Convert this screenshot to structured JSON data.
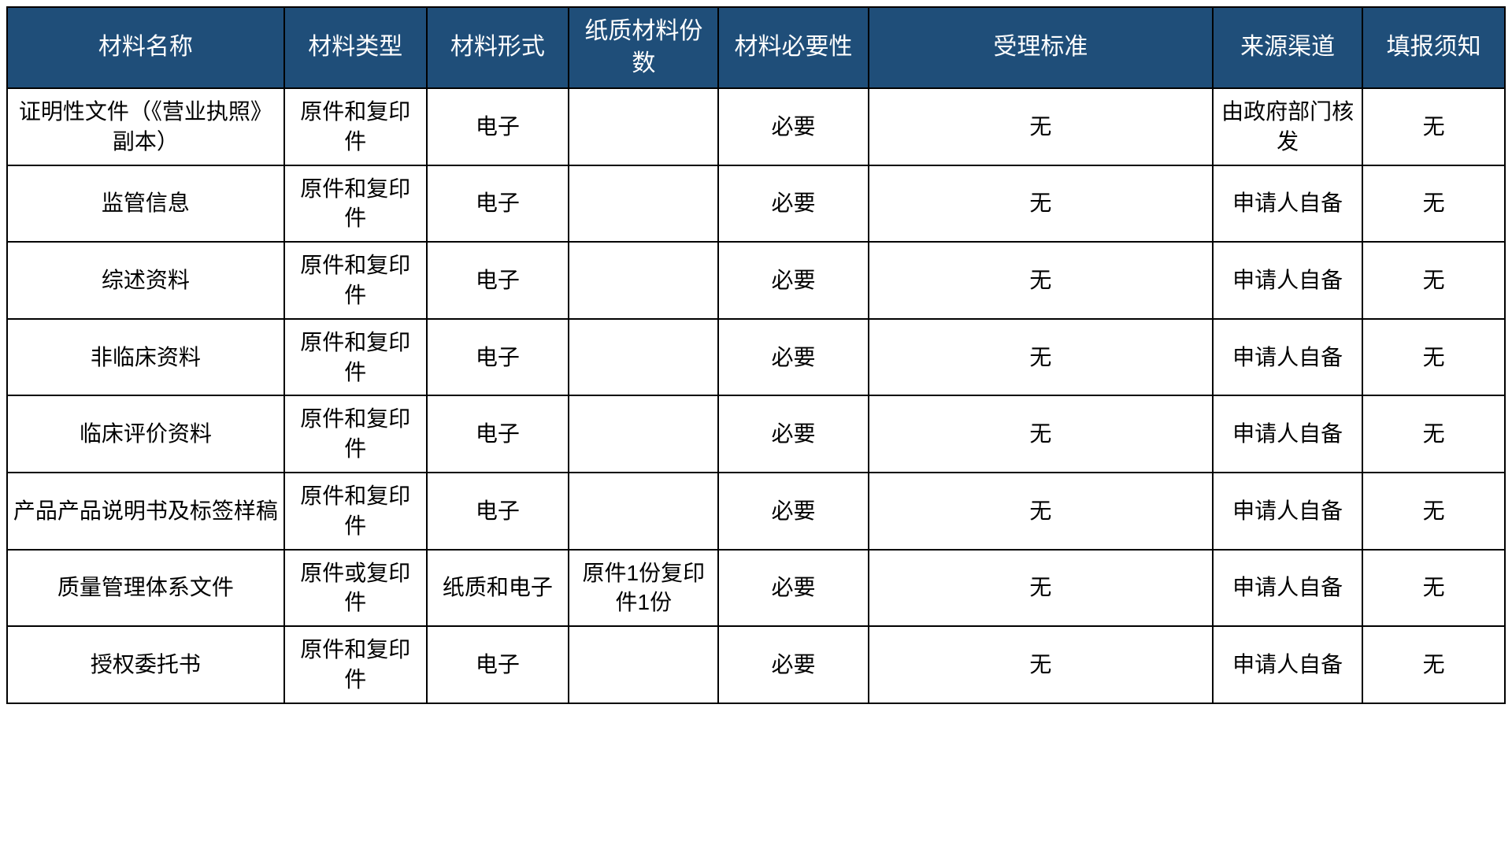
{
  "table": {
    "header_bg": "#1f4e79",
    "header_color": "#ffffff",
    "cell_bg": "#ffffff",
    "cell_color": "#000000",
    "border_color": "#000000",
    "border_width": 2,
    "header_fontsize": 30,
    "cell_fontsize": 28,
    "col_widths_pct": [
      18.5,
      9.5,
      9.5,
      10,
      10,
      23,
      10,
      9.5
    ],
    "columns": [
      "材料名称",
      "材料类型",
      "材料形式",
      "纸质材料份数",
      "材料必要性",
      "受理标准",
      "来源渠道",
      "填报须知"
    ],
    "rows": [
      [
        "证明性文件（《营业执照》副本）",
        "原件和复印件",
        "电子",
        "",
        "必要",
        "无",
        "由政府部门核发",
        "无"
      ],
      [
        "监管信息",
        "原件和复印件",
        "电子",
        "",
        "必要",
        "无",
        "申请人自备",
        "无"
      ],
      [
        "综述资料",
        "原件和复印件",
        "电子",
        "",
        "必要",
        "无",
        "申请人自备",
        "无"
      ],
      [
        "非临床资料",
        "原件和复印件",
        "电子",
        "",
        "必要",
        "无",
        "申请人自备",
        "无"
      ],
      [
        "临床评价资料",
        "原件和复印件",
        "电子",
        "",
        "必要",
        "无",
        "申请人自备",
        "无"
      ],
      [
        "产品产品说明书及标签样稿",
        "原件和复印件",
        "电子",
        "",
        "必要",
        "无",
        "申请人自备",
        "无"
      ],
      [
        "质量管理体系文件",
        "原件或复印件",
        "纸质和电子",
        "原件1份复印件1份",
        "必要",
        "无",
        "申请人自备",
        "无"
      ],
      [
        "授权委托书",
        "原件和复印件",
        "电子",
        "",
        "必要",
        "无",
        "申请人自备",
        "无"
      ]
    ]
  }
}
